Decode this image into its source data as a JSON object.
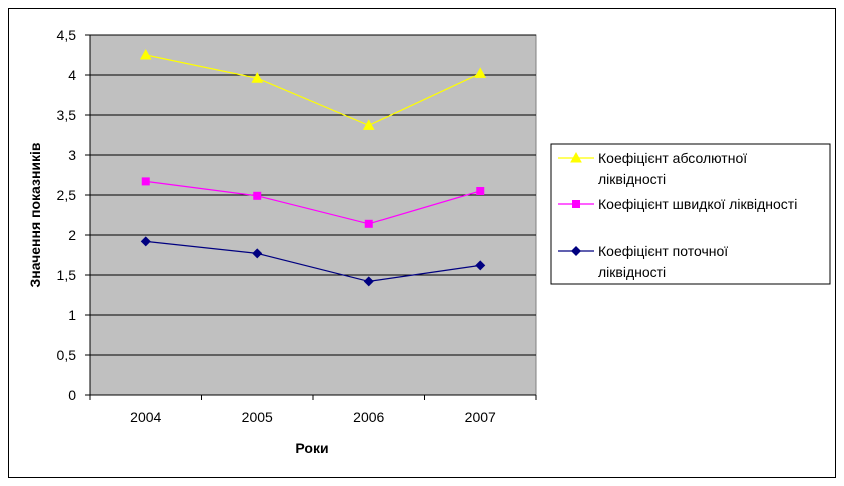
{
  "chart_data": {
    "type": "line",
    "categories": [
      "2004",
      "2005",
      "2006",
      "2007"
    ],
    "series": [
      {
        "name": "Коефіцієнт абсолютної ліквідності",
        "name_lines": [
          "Коефіцієнт абсолютної",
          "ліквідності"
        ],
        "values": [
          4.25,
          3.96,
          3.37,
          4.02
        ],
        "color": "#ffff00",
        "marker": "triangle"
      },
      {
        "name": "Коефіцієнт швидкої ліквідності",
        "name_lines": [
          "Коефіцієнт швидкої ліквідності"
        ],
        "values": [
          2.67,
          2.49,
          2.14,
          2.55
        ],
        "color": "#ff00ff",
        "marker": "square"
      },
      {
        "name": "Коефіцієнт поточної ліквідності",
        "name_lines": [
          "Коефіцієнт поточної",
          "ліквідності"
        ],
        "values": [
          1.92,
          1.77,
          1.42,
          1.62
        ],
        "color": "#000080",
        "marker": "diamond"
      }
    ],
    "y_ticks": [
      "0",
      "0,5",
      "1",
      "1,5",
      "2",
      "2,5",
      "3",
      "3,5",
      "4",
      "4,5"
    ],
    "title": "",
    "xlabel": "Роки",
    "ylabel": "Значення показників",
    "ylim": [
      0,
      4.5
    ],
    "grid": true,
    "plot_background": "#c0c0c0",
    "legend_position": "right"
  }
}
